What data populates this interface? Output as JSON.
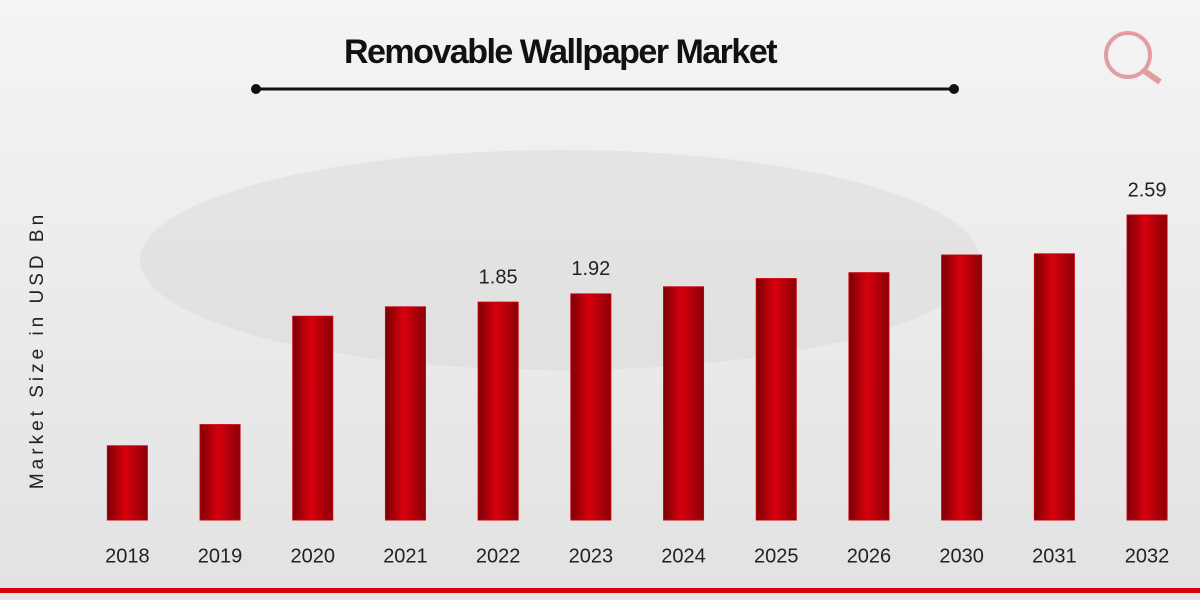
{
  "chart_data": {
    "type": "bar",
    "title": "Removable Wallpaper Market",
    "y_label": "Market Size in USD Bn",
    "categories": [
      "2018",
      "2019",
      "2020",
      "2021",
      "2022",
      "2023",
      "2024",
      "2025",
      "2026",
      "2030",
      "2031",
      "2032"
    ],
    "values": [
      0.63,
      0.81,
      1.73,
      1.81,
      1.85,
      1.92,
      1.98,
      2.05,
      2.1,
      2.25,
      2.26,
      2.59
    ],
    "value_labels": [
      null,
      null,
      null,
      null,
      "1.85",
      "1.92",
      null,
      null,
      null,
      null,
      null,
      "2.59"
    ],
    "color": "#c8000a"
  }
}
